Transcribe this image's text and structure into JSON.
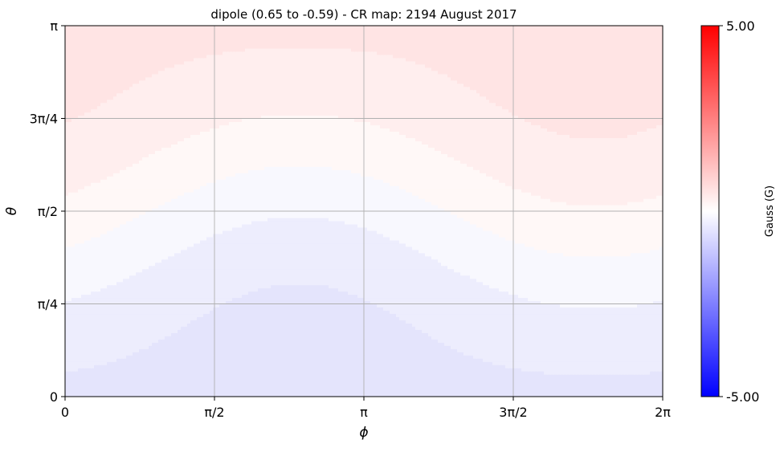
{
  "chart_data": {
    "type": "heatmap",
    "title": "dipole (0.65 to -0.59) - CR map: 2194 August 2017",
    "xlabel": "ϕ",
    "ylabel": "θ",
    "x_ticks": [
      "0",
      "π/2",
      "π",
      "3π/2",
      "2π"
    ],
    "y_ticks": [
      "0",
      "π/4",
      "π/2",
      "3π/4",
      "π"
    ],
    "xlim": [
      0,
      6.2832
    ],
    "ylim": [
      0,
      3.1416
    ],
    "grid": true,
    "field_min": -0.59,
    "field_max": 0.65,
    "contour_bands": [
      {
        "from": -0.6,
        "to": -0.4,
        "color": "#e4e4fc"
      },
      {
        "from": -0.4,
        "to": -0.2,
        "color": "#ededfd"
      },
      {
        "from": -0.2,
        "to": 0.0,
        "color": "#f8f8fe"
      },
      {
        "from": 0.0,
        "to": 0.2,
        "color": "#fff8f7"
      },
      {
        "from": 0.2,
        "to": 0.4,
        "color": "#ffeeee"
      },
      {
        "from": 0.4,
        "to": 0.6,
        "color": "#ffe4e4"
      },
      {
        "from": 0.6,
        "to": 0.8,
        "color": "#ffdada"
      }
    ],
    "colorbar": {
      "label": "Gauss (G)",
      "min": -5.0,
      "max": 5.0,
      "min_label": "-5.00",
      "max_label": "5.00",
      "min_color": "#0000ff",
      "mid_color": "#ffffff",
      "max_color": "#ff0000"
    }
  }
}
